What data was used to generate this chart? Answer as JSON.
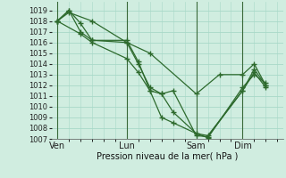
{
  "bg_color": "#d0ede0",
  "grid_color": "#a8d8c8",
  "line_color": "#2d6a2d",
  "marker_color": "#2d6a2d",
  "ylim": [
    1007,
    1019.8
  ],
  "yticks": [
    1007,
    1008,
    1009,
    1010,
    1011,
    1012,
    1013,
    1014,
    1015,
    1016,
    1017,
    1018,
    1019
  ],
  "xlabel": "Pression niveau de la mer( hPa )",
  "day_labels": [
    "Ven",
    "Lun",
    "Sam",
    "Dim"
  ],
  "day_positions": [
    0,
    6,
    12,
    16
  ],
  "vline_positions": [
    0,
    6,
    12,
    16
  ],
  "xlim": [
    -0.5,
    19.5
  ],
  "lines": [
    {
      "x": [
        0,
        1,
        3,
        6,
        8,
        12,
        14,
        16,
        17,
        18
      ],
      "y": [
        1018.0,
        1018.8,
        1018.0,
        1016.0,
        1015.0,
        1011.2,
        1013.0,
        1013.0,
        1014.0,
        1012.0
      ]
    },
    {
      "x": [
        0,
        1,
        2,
        3,
        6,
        7,
        8,
        9,
        10,
        12,
        13,
        16,
        17,
        18
      ],
      "y": [
        1018.0,
        1019.0,
        1017.8,
        1016.2,
        1016.0,
        1014.0,
        1011.8,
        1011.2,
        1011.5,
        1007.3,
        1007.2,
        1011.5,
        1013.5,
        1012.0
      ]
    },
    {
      "x": [
        0,
        1,
        2,
        3,
        6,
        7,
        8,
        9,
        10,
        12,
        13,
        16,
        17,
        18
      ],
      "y": [
        1018.0,
        1019.0,
        1017.0,
        1016.2,
        1016.2,
        1014.2,
        1011.5,
        1011.2,
        1009.5,
        1007.5,
        1007.1,
        1011.8,
        1013.0,
        1012.2
      ]
    },
    {
      "x": [
        0,
        2,
        3,
        6,
        7,
        8,
        9,
        10,
        12,
        13,
        16,
        17,
        18
      ],
      "y": [
        1018.0,
        1016.8,
        1016.0,
        1014.5,
        1013.2,
        1011.5,
        1009.0,
        1008.5,
        1007.5,
        1007.3,
        1011.5,
        1013.2,
        1011.8
      ]
    }
  ]
}
